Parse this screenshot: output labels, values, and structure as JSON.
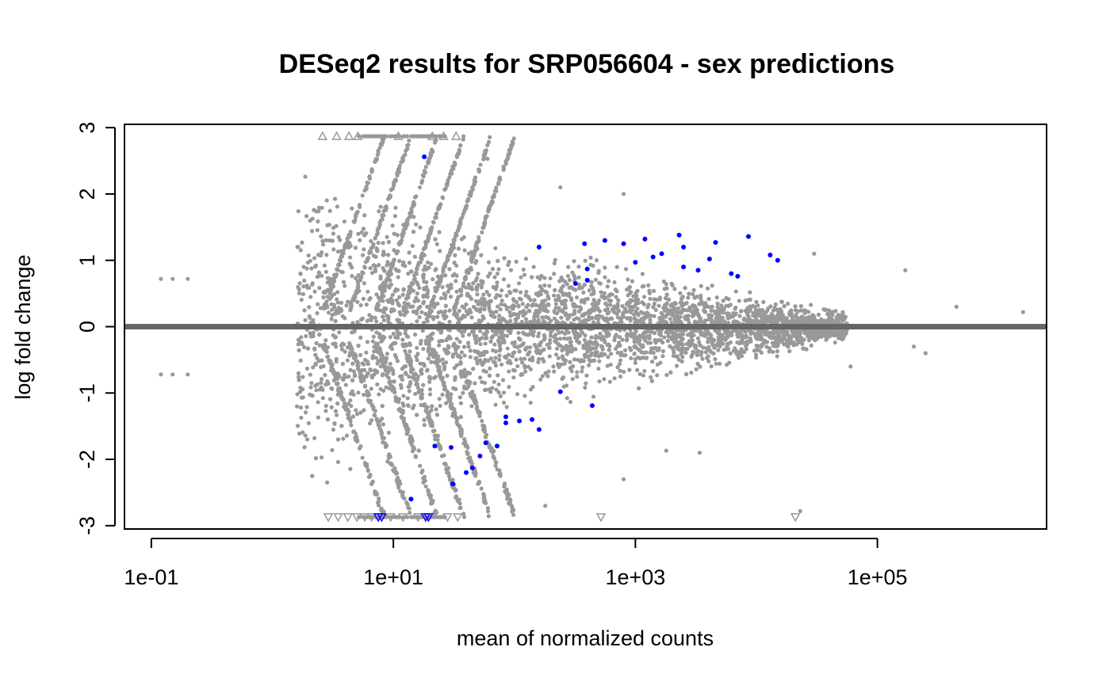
{
  "chart_data": {
    "type": "scatter",
    "title": "DESeq2 results for SRP056604 - sex predictions",
    "xlabel": "mean of normalized counts",
    "ylabel": "log fold change",
    "x_scale": "log10",
    "xlim": [
      0.06,
      2500000
    ],
    "ylim": [
      -3.05,
      3.05
    ],
    "x_ticks": [
      {
        "value": 0.1,
        "label": "1e-01"
      },
      {
        "value": 10,
        "label": "1e+01"
      },
      {
        "value": 1000,
        "label": "1e+03"
      },
      {
        "value": 100000,
        "label": "1e+05"
      }
    ],
    "y_ticks": [
      {
        "value": -3,
        "label": "-3"
      },
      {
        "value": -2,
        "label": "-2"
      },
      {
        "value": -1,
        "label": "-1"
      },
      {
        "value": 0,
        "label": "0"
      },
      {
        "value": 1,
        "label": "1"
      },
      {
        "value": 2,
        "label": "2"
      },
      {
        "value": 3,
        "label": "3"
      }
    ],
    "grid": false,
    "reference_line": {
      "y": 0,
      "color": "#666666"
    },
    "colors": {
      "not_significant": "#999999",
      "significant": "#0000ff",
      "frame": "#000000"
    },
    "series": [
      {
        "role": "significant",
        "color": "#0000ff",
        "marker": "circle",
        "points": [
          {
            "x": 18,
            "y": 2.56
          },
          {
            "x": 160,
            "y": 1.2
          },
          {
            "x": 380,
            "y": 1.25
          },
          {
            "x": 560,
            "y": 1.3
          },
          {
            "x": 800,
            "y": 1.25
          },
          {
            "x": 1200,
            "y": 1.32
          },
          {
            "x": 2300,
            "y": 1.38
          },
          {
            "x": 4600,
            "y": 1.27
          },
          {
            "x": 8600,
            "y": 1.36
          },
          {
            "x": 1000,
            "y": 0.97
          },
          {
            "x": 1400,
            "y": 1.05
          },
          {
            "x": 1650,
            "y": 1.1
          },
          {
            "x": 2500,
            "y": 1.2
          },
          {
            "x": 2500,
            "y": 0.9
          },
          {
            "x": 3300,
            "y": 0.85
          },
          {
            "x": 4100,
            "y": 1.02
          },
          {
            "x": 6200,
            "y": 0.8
          },
          {
            "x": 7000,
            "y": 0.76
          },
          {
            "x": 13000,
            "y": 1.08
          },
          {
            "x": 15000,
            "y": 1.0
          },
          {
            "x": 400,
            "y": 0.87
          },
          {
            "x": 400,
            "y": 0.7
          },
          {
            "x": 320,
            "y": 0.65
          },
          {
            "x": 240,
            "y": -0.98
          },
          {
            "x": 440,
            "y": -1.19
          },
          {
            "x": 85,
            "y": -1.36
          },
          {
            "x": 85,
            "y": -1.45
          },
          {
            "x": 110,
            "y": -1.42
          },
          {
            "x": 140,
            "y": -1.4
          },
          {
            "x": 160,
            "y": -1.55
          },
          {
            "x": 22,
            "y": -1.8
          },
          {
            "x": 30,
            "y": -1.82
          },
          {
            "x": 52,
            "y": -1.95
          },
          {
            "x": 58,
            "y": -1.75
          },
          {
            "x": 72,
            "y": -1.8
          },
          {
            "x": 45,
            "y": -2.13
          },
          {
            "x": 40,
            "y": -2.2
          },
          {
            "x": 31,
            "y": -2.37
          },
          {
            "x": 14,
            "y": -2.6
          }
        ],
        "clipped_low": [
          7.5,
          8.0,
          18.5,
          19.5
        ]
      },
      {
        "role": "not_significant",
        "color": "#999999",
        "marker": "circle",
        "note": "dense cloud of points; max |log fold change| envelope by mean count",
        "envelope": [
          {
            "x": 0.5,
            "upper": 3.0,
            "lower": -3.0
          },
          {
            "x": 1,
            "upper": 2.7,
            "lower": -2.7
          },
          {
            "x": 3,
            "upper": 2.4,
            "lower": -2.4
          },
          {
            "x": 10,
            "upper": 2.0,
            "lower": -2.2
          },
          {
            "x": 30,
            "upper": 1.5,
            "lower": -1.7
          },
          {
            "x": 100,
            "upper": 1.2,
            "lower": -1.3
          },
          {
            "x": 1000,
            "upper": 0.95,
            "lower": -0.95
          },
          {
            "x": 10000,
            "upper": 0.55,
            "lower": -0.55
          },
          {
            "x": 50000,
            "upper": 0.25,
            "lower": -0.25
          }
        ],
        "outliers": [
          {
            "x": 0.12,
            "y": 0.72
          },
          {
            "x": 0.15,
            "y": 0.72
          },
          {
            "x": 0.12,
            "y": -0.72
          },
          {
            "x": 0.15,
            "y": -0.72
          },
          {
            "x": 0.2,
            "y": 0.72
          },
          {
            "x": 0.2,
            "y": -0.72
          },
          {
            "x": 60,
            "y": 2.53
          },
          {
            "x": 240,
            "y": 2.1
          },
          {
            "x": 800,
            "y": 2.0
          },
          {
            "x": 170000,
            "y": 0.85
          },
          {
            "x": 450000,
            "y": 0.3
          },
          {
            "x": 1600000,
            "y": 0.22
          },
          {
            "x": 200000,
            "y": -0.3
          },
          {
            "x": 250000,
            "y": -0.4
          },
          {
            "x": 30000,
            "y": 1.1
          },
          {
            "x": 60000,
            "y": -0.6
          },
          {
            "x": 3400,
            "y": -1.9
          },
          {
            "x": 1800,
            "y": -1.87
          },
          {
            "x": 800,
            "y": -2.3
          },
          {
            "x": 180,
            "y": -2.7
          },
          {
            "x": 23000,
            "y": -2.78
          }
        ],
        "clipped_high": [
          2.6,
          3.4,
          4.3,
          5.1,
          11,
          21,
          26,
          33
        ],
        "clipped_low": [
          2.9,
          3.5,
          4.2,
          5.0,
          5.8,
          6.6,
          9.5,
          12,
          16,
          28,
          34,
          520,
          21000
        ]
      }
    ]
  }
}
